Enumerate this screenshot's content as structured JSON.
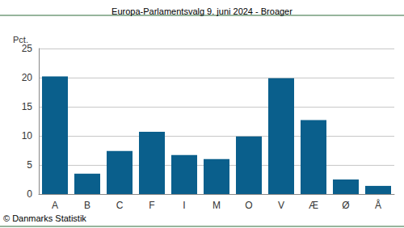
{
  "chart_data": {
    "type": "bar",
    "title": "Europa-Parlamentsvalg 9. juni 2024 - Broager",
    "y_label": "Pct.",
    "source": "© Danmarks Statistik",
    "categories": [
      "A",
      "B",
      "C",
      "F",
      "I",
      "M",
      "O",
      "V",
      "Æ",
      "Ø",
      "Å"
    ],
    "values": [
      20.2,
      3.5,
      7.4,
      10.7,
      6.7,
      6.0,
      9.9,
      19.9,
      12.7,
      2.5,
      1.4
    ],
    "color": "#0a5f8c",
    "ylim": [
      0,
      25
    ],
    "yticks": [
      0,
      5,
      10,
      15,
      20,
      25
    ],
    "grid": true
  }
}
